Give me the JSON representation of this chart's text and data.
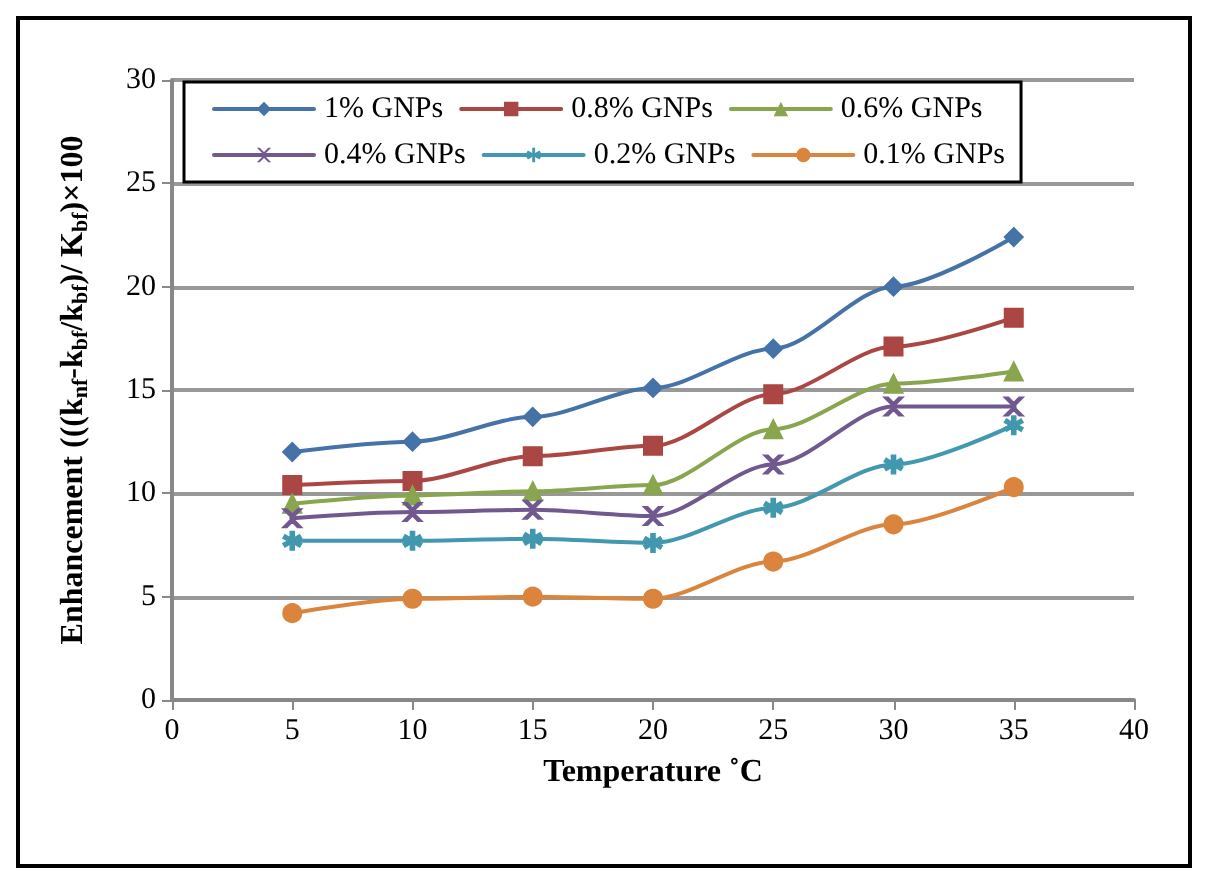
{
  "chart_data": {
    "type": "line",
    "xlabel": "Temperature ˚C",
    "ylabel": "Enhancement (((k$_{nf}$-k$_{bf}$/k$_{bf}$)/ K$_{bf}$)×100",
    "x": [
      5,
      10,
      15,
      20,
      25,
      30,
      35
    ],
    "xlim": [
      0,
      40
    ],
    "xticks": [
      0,
      5,
      10,
      15,
      20,
      25,
      30,
      35,
      40
    ],
    "ylim": [
      0,
      30
    ],
    "yticks": [
      0,
      5,
      10,
      15,
      20,
      25,
      30
    ],
    "grid": "y",
    "legend": "top",
    "series": [
      {
        "name": "1% GNPs",
        "color": "#4572a7",
        "marker": "diamond",
        "values": [
          12.0,
          12.5,
          13.7,
          15.1,
          17.0,
          20.0,
          22.4
        ]
      },
      {
        "name": "0.8% GNPs",
        "color": "#aa4643",
        "marker": "square",
        "values": [
          10.4,
          10.6,
          11.8,
          12.3,
          14.8,
          17.1,
          18.5
        ]
      },
      {
        "name": "0.6% GNPs",
        "color": "#89a54e",
        "marker": "triangle",
        "values": [
          9.5,
          9.9,
          10.1,
          10.4,
          13.1,
          15.3,
          15.9
        ]
      },
      {
        "name": "0.4% GNPs",
        "color": "#71588f",
        "marker": "cross",
        "values": [
          8.8,
          9.1,
          9.2,
          8.9,
          11.4,
          14.2,
          14.2
        ]
      },
      {
        "name": "0.2% GNPs",
        "color": "#4198af",
        "marker": "star",
        "values": [
          7.7,
          7.7,
          7.8,
          7.6,
          9.3,
          11.4,
          13.3
        ]
      },
      {
        "name": "0.1% GNPs",
        "color": "#db843d",
        "marker": "circle",
        "values": [
          4.2,
          4.9,
          5.0,
          4.9,
          6.7,
          8.5,
          10.3
        ]
      }
    ]
  }
}
